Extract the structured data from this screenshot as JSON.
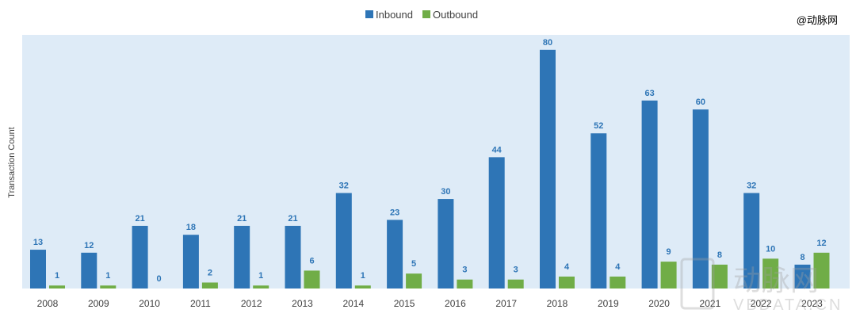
{
  "watermark": {
    "top_right": "@动脉网",
    "bottom_right_logo": "动脉网",
    "bottom_right_domain": "VBDATA.CN"
  },
  "colors": {
    "inbound": "#2e75b6",
    "outbound": "#70ad47",
    "plot_background": "#deebf7",
    "inbound_label": "#2e75b6",
    "outbound_label": "#2e75b6",
    "axis_text": "#404040"
  },
  "chart_data": {
    "type": "bar",
    "title": "",
    "xlabel": "",
    "ylabel": "Transaction Count",
    "ylim": [
      0,
      85
    ],
    "grid": false,
    "legend_position": "top-center",
    "categories": [
      "2008",
      "2009",
      "2010",
      "2011",
      "2012",
      "2013",
      "2014",
      "2015",
      "2016",
      "2017",
      "2018",
      "2019",
      "2020",
      "2021",
      "2022",
      "2023"
    ],
    "series": [
      {
        "name": "Inbound",
        "values": [
          13,
          12,
          21,
          18,
          21,
          21,
          32,
          23,
          30,
          44,
          80,
          52,
          63,
          60,
          32,
          8
        ]
      },
      {
        "name": "Outbound",
        "values": [
          1,
          1,
          0,
          2,
          1,
          6,
          1,
          5,
          3,
          3,
          4,
          4,
          9,
          8,
          10,
          12
        ]
      }
    ]
  }
}
